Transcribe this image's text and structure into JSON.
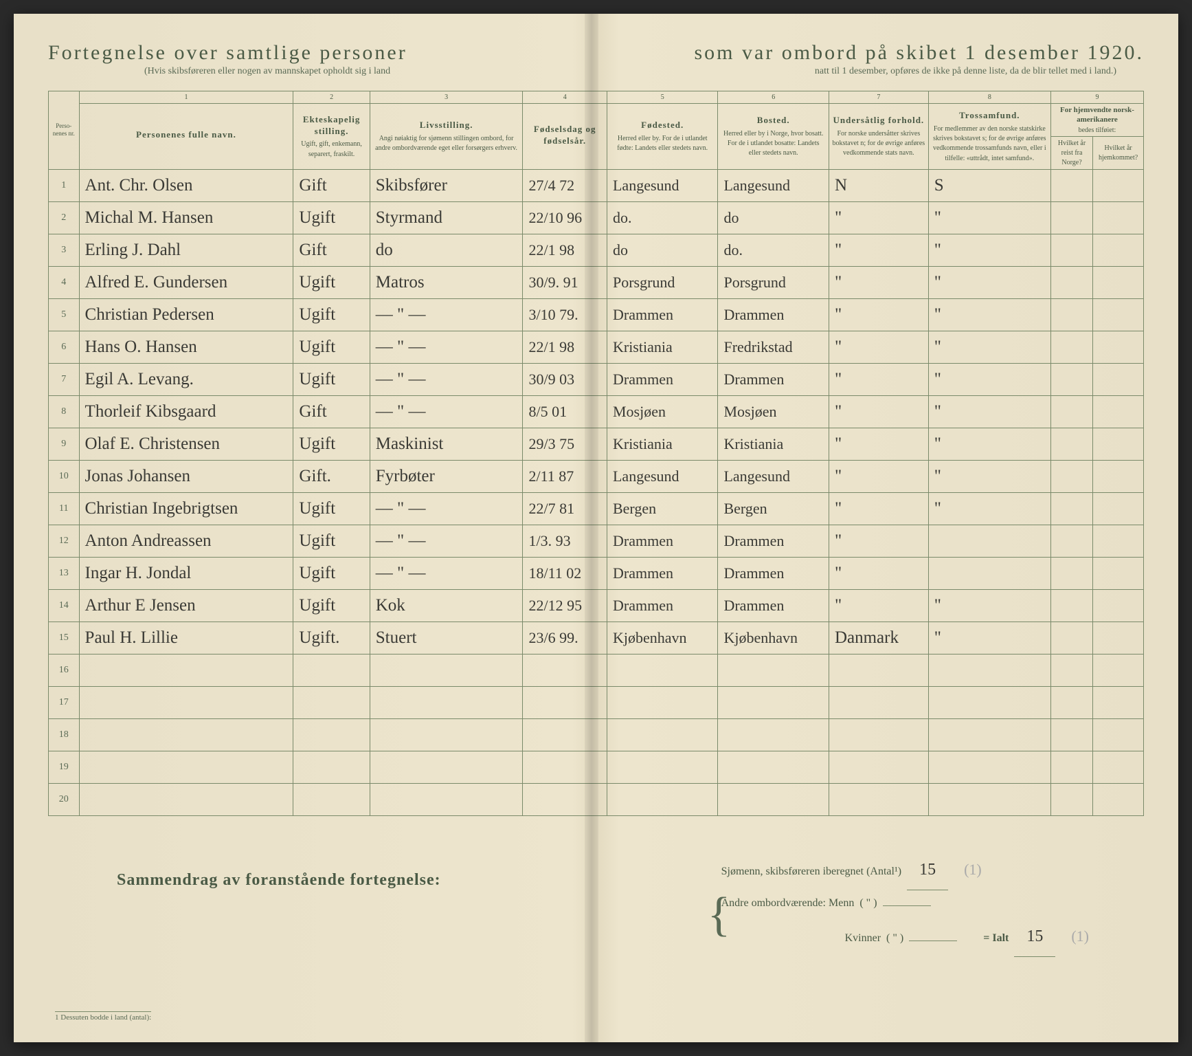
{
  "title_left": "Fortegnelse over samtlige personer",
  "title_right": "som var ombord på skibet 1 desember 1920.",
  "subtitle_left": "(Hvis skibsføreren eller nogen av mannskapet opholdt sig i land",
  "subtitle_right": "natt til 1 desember, opføres de ikke på denne liste, da de blir tellet med i land.)",
  "col_nums": [
    "1",
    "2",
    "3",
    "4",
    "5",
    "6",
    "7",
    "8",
    "9"
  ],
  "headers": {
    "nr": "Perso-\nnenes\nnr.",
    "name": "Personenes fulle navn.",
    "marital_t": "Ekteskapelig stilling.",
    "marital_s": "Ugift, gift, enkemann, separert, fraskilt.",
    "occ_t": "Livsstilling.",
    "occ_s": "Angi nøiaktig for sjømenn stillingen ombord, for andre ombordværende eget eller forsørgers erhverv.",
    "birth": "Fødselsdag og fødselsår.",
    "bplace_t": "Fødested.",
    "bplace_s": "Herred eller by. For de i utlandet fødte: Landets eller stedets navn.",
    "res_t": "Bosted.",
    "res_s": "Herred eller by i Norge, hvor bosatt. For de i utlandet bosatte: Landets eller stedets navn.",
    "nat_t": "Undersåtlig forhold.",
    "nat_s": "For norske undersåtter skrives bokstavet n; for de øvrige anføres vedkommende stats navn.",
    "rel_t": "Trossamfund.",
    "rel_s": "For medlemmer av den norske statskirke skrives bokstavet s; for de øvrige anføres vedkommende trossamfunds navn, eller i tilfelle: «uttrådt, intet samfund».",
    "amer_t": "For hjemvendte norsk-amerikanere",
    "amer_s": "bedes tilføiet:",
    "amer_c1": "Hvilket år reist fra Norge?",
    "amer_c2": "Hvilket år hjemkommet?"
  },
  "rows": [
    {
      "n": "1",
      "name": "Ant. Chr. Olsen",
      "mar": "Gift",
      "occ": "Skibsfører",
      "birth": "27/4 72",
      "bplace": "Langesund",
      "res": "Langesund",
      "nat": "N",
      "rel": "S"
    },
    {
      "n": "2",
      "name": "Michal M. Hansen",
      "mar": "Ugift",
      "occ": "Styrmand",
      "birth": "22/10 96",
      "bplace": "do.",
      "res": "do",
      "nat": "\"",
      "rel": "\""
    },
    {
      "n": "3",
      "name": "Erling J. Dahl",
      "mar": "Gift",
      "occ": "do",
      "birth": "22/1 98",
      "bplace": "do",
      "res": "do.",
      "nat": "\"",
      "rel": "\""
    },
    {
      "n": "4",
      "name": "Alfred E. Gundersen",
      "mar": "Ugift",
      "occ": "Matros",
      "birth": "30/9. 91",
      "bplace": "Porsgrund",
      "res": "Porsgrund",
      "nat": "\"",
      "rel": "\""
    },
    {
      "n": "5",
      "name": "Christian Pedersen",
      "mar": "Ugift",
      "occ": "— \" —",
      "birth": "3/10 79.",
      "bplace": "Drammen",
      "res": "Drammen",
      "nat": "\"",
      "rel": "\""
    },
    {
      "n": "6",
      "name": "Hans O. Hansen",
      "mar": "Ugift",
      "occ": "— \" —",
      "birth": "22/1 98",
      "bplace": "Kristiania",
      "res": "Fredrikstad",
      "nat": "\"",
      "rel": "\""
    },
    {
      "n": "7",
      "name": "Egil A. Levang.",
      "mar": "Ugift",
      "occ": "— \" —",
      "birth": "30/9 03",
      "bplace": "Drammen",
      "res": "Drammen",
      "nat": "\"",
      "rel": "\""
    },
    {
      "n": "8",
      "name": "Thorleif Kibsgaard",
      "mar": "Gift",
      "occ": "— \" —",
      "birth": "8/5 01",
      "bplace": "Mosjøen",
      "res": "Mosjøen",
      "nat": "\"",
      "rel": "\""
    },
    {
      "n": "9",
      "name": "Olaf E. Christensen",
      "mar": "Ugift",
      "occ": "Maskinist",
      "birth": "29/3 75",
      "bplace": "Kristiania",
      "res": "Kristiania",
      "nat": "\"",
      "rel": "\""
    },
    {
      "n": "10",
      "name": "Jonas Johansen",
      "mar": "Gift.",
      "occ": "Fyrbøter",
      "birth": "2/11 87",
      "bplace": "Langesund",
      "res": "Langesund",
      "nat": "\"",
      "rel": "\""
    },
    {
      "n": "11",
      "name": "Christian Ingebrigtsen",
      "mar": "Ugift",
      "occ": "— \" —",
      "birth": "22/7 81",
      "bplace": "Bergen",
      "res": "Bergen",
      "nat": "\"",
      "rel": "\""
    },
    {
      "n": "12",
      "name": "Anton Andreassen",
      "mar": "Ugift",
      "occ": "— \" —",
      "birth": "1/3. 93",
      "bplace": "Drammen",
      "res": "Drammen",
      "nat": "\"",
      "rel": ""
    },
    {
      "n": "13",
      "name": "Ingar H. Jondal",
      "mar": "Ugift",
      "occ": "— \" —",
      "birth": "18/11 02",
      "bplace": "Drammen",
      "res": "Drammen",
      "nat": "\"",
      "rel": ""
    },
    {
      "n": "14",
      "name": "Arthur E Jensen",
      "mar": "Ugift",
      "occ": "Kok",
      "birth": "22/12 95",
      "bplace": "Drammen",
      "res": "Drammen",
      "nat": "\"",
      "rel": "\""
    },
    {
      "n": "15",
      "name": "Paul H. Lillie",
      "mar": "Ugift.",
      "occ": "Stuert",
      "birth": "23/6 99.",
      "bplace": "Kjøbenhavn",
      "res": "Kjøbenhavn",
      "nat": "Danmark",
      "rel": "\""
    },
    {
      "n": "16",
      "name": "",
      "mar": "",
      "occ": "",
      "birth": "",
      "bplace": "",
      "res": "",
      "nat": "",
      "rel": ""
    },
    {
      "n": "17",
      "name": "",
      "mar": "",
      "occ": "",
      "birth": "",
      "bplace": "",
      "res": "",
      "nat": "",
      "rel": ""
    },
    {
      "n": "18",
      "name": "",
      "mar": "",
      "occ": "",
      "birth": "",
      "bplace": "",
      "res": "",
      "nat": "",
      "rel": ""
    },
    {
      "n": "19",
      "name": "",
      "mar": "",
      "occ": "",
      "birth": "",
      "bplace": "",
      "res": "",
      "nat": "",
      "rel": ""
    },
    {
      "n": "20",
      "name": "",
      "mar": "",
      "occ": "",
      "birth": "",
      "bplace": "",
      "res": "",
      "nat": "",
      "rel": ""
    }
  ],
  "summary": {
    "title": "Sammendrag av foranstående fortegnelse:",
    "line1_label": "Sjømenn, skibsføreren iberegnet (Antal¹)",
    "line1_val": "15",
    "line1_pencil": "(1)",
    "line2_label": "Andre ombordværende: Menn",
    "line2_paren": "( \" )",
    "line3_label": "Kvinner",
    "line3_paren": "( \" )",
    "total_label": "= Ialt",
    "total_val": "15",
    "total_pencil": "(1)"
  },
  "footnote": "1  Dessuten bodde i land (antal):",
  "colwidths": {
    "nr": "40px",
    "name": "280px",
    "mar": "100px",
    "occ": "200px",
    "birth": "110px",
    "bplace": "145px",
    "res": "145px",
    "nat": "130px",
    "rel": "160px",
    "a1": "55px",
    "a2": "55px"
  }
}
